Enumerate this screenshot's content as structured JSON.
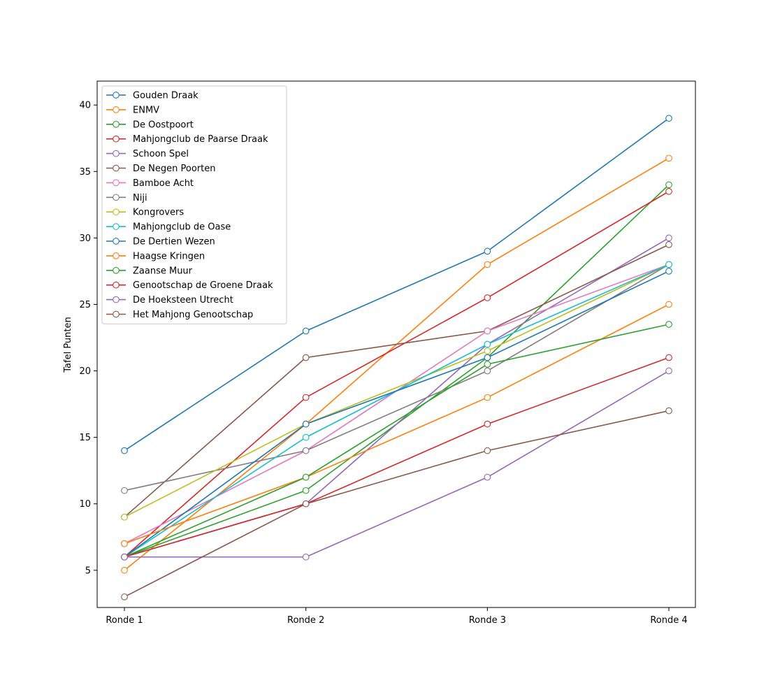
{
  "chart_data": {
    "type": "line",
    "title": "",
    "xlabel": "",
    "ylabel": "Tafel Punten",
    "categories": [
      "Ronde 1",
      "Ronde 2",
      "Ronde 3",
      "Ronde 4"
    ],
    "ylim": [
      2.2,
      41.8
    ],
    "yticks": [
      5,
      10,
      15,
      20,
      25,
      30,
      35,
      40
    ],
    "grid": false,
    "legend_position": "top-left",
    "marker": "open-circle",
    "series": [
      {
        "name": "Gouden Draak",
        "color": "#1f77b4",
        "values": [
          14,
          23,
          29,
          39
        ]
      },
      {
        "name": "ENMV",
        "color": "#ff7f0e",
        "values": [
          5,
          16,
          28,
          36
        ]
      },
      {
        "name": "De Oostpoort",
        "color": "#2ca02c",
        "values": [
          6,
          11,
          21,
          34
        ]
      },
      {
        "name": "Mahjongclub de Paarse Draak",
        "color": "#d62728",
        "values": [
          6,
          18,
          25.5,
          33.5
        ]
      },
      {
        "name": "Schoon Spel",
        "color": "#9467bd",
        "values": [
          6,
          10,
          22,
          30
        ]
      },
      {
        "name": "De Negen Poorten",
        "color": "#8c564b",
        "values": [
          9,
          21,
          23,
          29.5
        ]
      },
      {
        "name": "Bamboe Acht",
        "color": "#e377c2",
        "values": [
          7,
          14,
          23,
          28
        ]
      },
      {
        "name": "Niji",
        "color": "#7f7f7f",
        "values": [
          11,
          14,
          20,
          28
        ]
      },
      {
        "name": "Kongrovers",
        "color": "#bcbd22",
        "values": [
          9,
          16,
          21.5,
          28
        ]
      },
      {
        "name": "Mahjongclub de Oase",
        "color": "#17becf",
        "values": [
          6,
          15,
          22,
          28
        ]
      },
      {
        "name": "De Dertien Wezen",
        "color": "#1f77b4",
        "values": [
          6,
          16,
          21,
          27.5
        ]
      },
      {
        "name": "Haagse Kringen",
        "color": "#ff7f0e",
        "values": [
          7,
          12,
          18,
          25
        ]
      },
      {
        "name": "Zaanse Muur",
        "color": "#2ca02c",
        "values": [
          6,
          12,
          20.5,
          23.5
        ]
      },
      {
        "name": "Genootschap de Groene Draak",
        "color": "#d62728",
        "values": [
          6,
          10,
          16,
          21
        ]
      },
      {
        "name": "De Hoeksteen Utrecht",
        "color": "#9467bd",
        "values": [
          6,
          6,
          12,
          20
        ]
      },
      {
        "name": "Het Mahjong Genootschap",
        "color": "#8c564b",
        "values": [
          3,
          10,
          14,
          17
        ]
      }
    ]
  }
}
